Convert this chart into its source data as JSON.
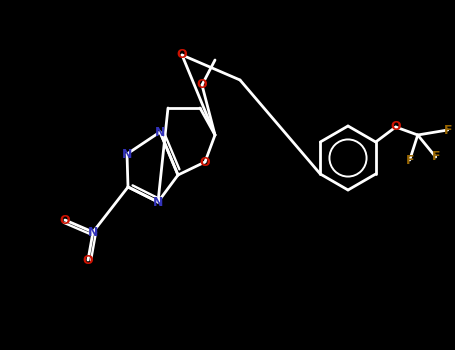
{
  "bg_color": "#000000",
  "atom_colors": {
    "N": "#3333BB",
    "O": "#CC1100",
    "F": "#996600",
    "W": "#FFFFFF"
  },
  "lw": 2.0,
  "fontsize": 10
}
